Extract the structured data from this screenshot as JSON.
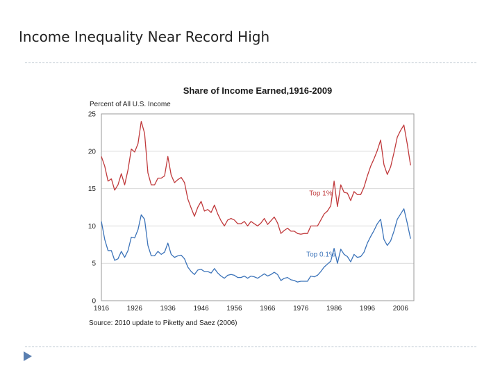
{
  "slide": {
    "title": "Income Inequality Near Record High"
  },
  "chart_data": {
    "type": "line",
    "title": "Share of Income Earned,1916-2009",
    "ylabel": "Percent of All U.S. Income",
    "xlabel": "",
    "source": "Source: 2010 update to Piketty and Saez (2006)",
    "xlim": [
      1916,
      2010
    ],
    "ylim": [
      0,
      25
    ],
    "yticks": [
      0,
      5,
      10,
      15,
      20,
      25
    ],
    "xticks": [
      1916,
      1926,
      1936,
      1946,
      1956,
      1966,
      1976,
      1986,
      1996,
      2006
    ],
    "grid": true,
    "series": [
      {
        "name": "Top 1%",
        "color": "#c0393b",
        "label_at": [
          1982,
          14.1
        ],
        "x": [
          1916,
          1917,
          1918,
          1919,
          1920,
          1921,
          1922,
          1923,
          1924,
          1925,
          1926,
          1927,
          1928,
          1929,
          1930,
          1931,
          1932,
          1933,
          1934,
          1935,
          1936,
          1937,
          1938,
          1939,
          1940,
          1941,
          1942,
          1943,
          1944,
          1945,
          1946,
          1947,
          1948,
          1949,
          1950,
          1951,
          1952,
          1953,
          1954,
          1955,
          1956,
          1957,
          1958,
          1959,
          1960,
          1961,
          1962,
          1963,
          1964,
          1965,
          1966,
          1967,
          1968,
          1969,
          1970,
          1971,
          1972,
          1973,
          1974,
          1975,
          1976,
          1977,
          1978,
          1979,
          1980,
          1981,
          1982,
          1983,
          1984,
          1985,
          1986,
          1987,
          1988,
          1989,
          1990,
          1991,
          1992,
          1993,
          1994,
          1995,
          1996,
          1997,
          1998,
          1999,
          2000,
          2001,
          2002,
          2003,
          2004,
          2005,
          2006,
          2007,
          2008,
          2009
        ],
        "values": [
          19.3,
          18.0,
          16.0,
          16.3,
          14.8,
          15.5,
          17.0,
          15.5,
          17.5,
          20.3,
          19.9,
          21.0,
          24.0,
          22.4,
          17.1,
          15.5,
          15.5,
          16.4,
          16.4,
          16.7,
          19.3,
          16.8,
          15.8,
          16.2,
          16.5,
          15.8,
          13.6,
          12.4,
          11.3,
          12.5,
          13.3,
          12.0,
          12.2,
          11.8,
          12.8,
          11.6,
          10.7,
          10.0,
          10.8,
          11.0,
          10.8,
          10.3,
          10.3,
          10.6,
          10.0,
          10.6,
          10.3,
          10.0,
          10.4,
          11.0,
          10.2,
          10.7,
          11.2,
          10.4,
          9.0,
          9.4,
          9.7,
          9.3,
          9.3,
          9.0,
          8.9,
          9.0,
          9.0,
          10.0,
          10.0,
          10.0,
          10.8,
          11.6,
          12.0,
          12.7,
          16.0,
          12.6,
          15.5,
          14.5,
          14.4,
          13.4,
          14.6,
          14.2,
          14.2,
          15.2,
          16.7,
          18.0,
          19.0,
          20.1,
          21.5,
          18.2,
          16.9,
          17.9,
          19.8,
          21.9,
          22.8,
          23.5,
          21.0,
          18.1
        ]
      },
      {
        "name": "Top 0.1%",
        "color": "#3b73b9",
        "label_at": [
          1982,
          5.9
        ],
        "x": [
          1916,
          1917,
          1918,
          1919,
          1920,
          1921,
          1922,
          1923,
          1924,
          1925,
          1926,
          1927,
          1928,
          1929,
          1930,
          1931,
          1932,
          1933,
          1934,
          1935,
          1936,
          1937,
          1938,
          1939,
          1940,
          1941,
          1942,
          1943,
          1944,
          1945,
          1946,
          1947,
          1948,
          1949,
          1950,
          1951,
          1952,
          1953,
          1954,
          1955,
          1956,
          1957,
          1958,
          1959,
          1960,
          1961,
          1962,
          1963,
          1964,
          1965,
          1966,
          1967,
          1968,
          1969,
          1970,
          1971,
          1972,
          1973,
          1974,
          1975,
          1976,
          1977,
          1978,
          1979,
          1980,
          1981,
          1982,
          1983,
          1984,
          1985,
          1986,
          1987,
          1988,
          1989,
          1990,
          1991,
          1992,
          1993,
          1994,
          1995,
          1996,
          1997,
          1998,
          1999,
          2000,
          2001,
          2002,
          2003,
          2004,
          2005,
          2006,
          2007,
          2008,
          2009
        ],
        "values": [
          10.6,
          8.2,
          6.7,
          6.7,
          5.4,
          5.6,
          6.6,
          5.8,
          6.7,
          8.5,
          8.4,
          9.5,
          11.5,
          10.9,
          7.4,
          6.0,
          6.0,
          6.6,
          6.2,
          6.5,
          7.7,
          6.2,
          5.8,
          6.0,
          6.1,
          5.6,
          4.5,
          3.9,
          3.5,
          4.1,
          4.2,
          3.9,
          3.9,
          3.7,
          4.3,
          3.7,
          3.3,
          3.0,
          3.4,
          3.5,
          3.4,
          3.1,
          3.1,
          3.3,
          3.0,
          3.3,
          3.2,
          3.0,
          3.3,
          3.6,
          3.3,
          3.5,
          3.8,
          3.5,
          2.7,
          3.0,
          3.1,
          2.8,
          2.7,
          2.5,
          2.6,
          2.6,
          2.6,
          3.3,
          3.2,
          3.4,
          3.9,
          4.5,
          4.9,
          5.3,
          7.0,
          5.0,
          6.9,
          6.2,
          5.9,
          5.2,
          6.2,
          5.8,
          5.9,
          6.5,
          7.7,
          8.6,
          9.4,
          10.3,
          10.9,
          8.2,
          7.4,
          8.0,
          9.3,
          10.9,
          11.6,
          12.3,
          10.4,
          8.3
        ]
      }
    ]
  }
}
